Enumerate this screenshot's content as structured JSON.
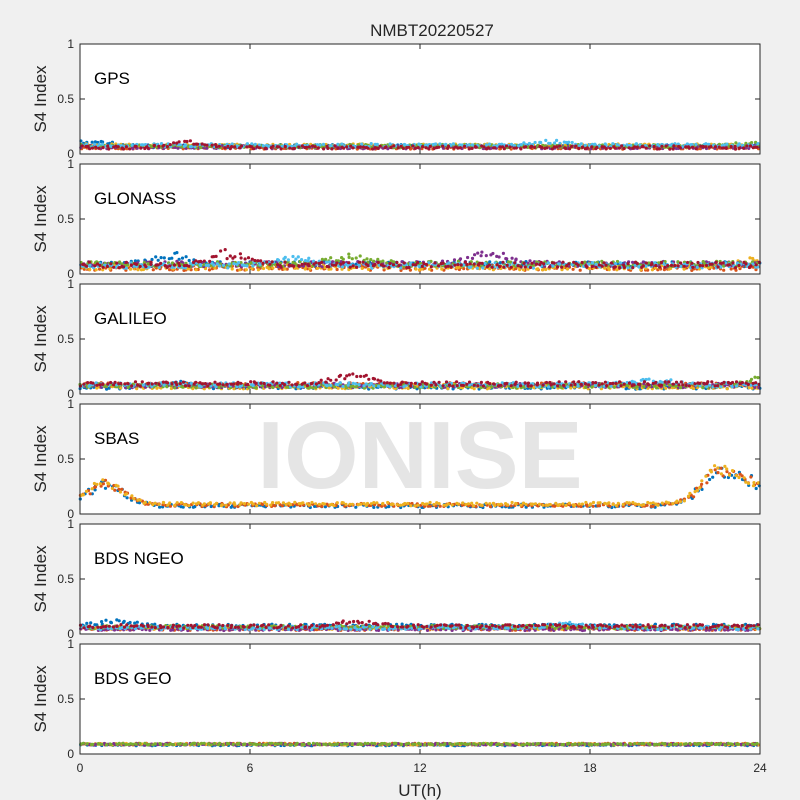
{
  "figure": {
    "title": "NMBT20220527",
    "watermark": "IONISE",
    "background_color": "#f0f0f0",
    "axes_background": "#ffffff",
    "series_colors": [
      "#0072bd",
      "#d95319",
      "#edb120",
      "#7e2f8e",
      "#77ac30",
      "#4dbeee",
      "#a2142f"
    ]
  },
  "chart_data": [
    {
      "type": "scatter",
      "panel_label": "GPS",
      "ylabel": "S4 Index",
      "xlabel": "",
      "xlim": [
        0,
        24
      ],
      "ylim": [
        0,
        1
      ],
      "yticks": [
        "0",
        "0.5",
        "1"
      ],
      "series_count": 7,
      "baseline": 0.07,
      "spread": 0.03,
      "bumps": [
        [
          0.5,
          0.12
        ],
        [
          3.8,
          0.12
        ],
        [
          16.5,
          0.11
        ],
        [
          23.5,
          0.1
        ]
      ]
    },
    {
      "type": "scatter",
      "panel_label": "GLONASS",
      "ylabel": "S4 Index",
      "xlabel": "",
      "xlim": [
        0,
        24
      ],
      "ylim": [
        0,
        1
      ],
      "yticks": [
        "0",
        "0.5",
        "1"
      ],
      "series_count": 7,
      "baseline": 0.08,
      "spread": 0.05,
      "bumps": [
        [
          3.2,
          0.18
        ],
        [
          5.2,
          0.2
        ],
        [
          7.5,
          0.17
        ],
        [
          9.5,
          0.15
        ],
        [
          14.5,
          0.2
        ],
        [
          24.0,
          0.16
        ]
      ]
    },
    {
      "type": "scatter",
      "panel_label": "GALILEO",
      "ylabel": "S4 Index",
      "xlabel": "",
      "xlim": [
        0,
        24
      ],
      "ylim": [
        0,
        1
      ],
      "yticks": [
        "0",
        "0.5",
        "1"
      ],
      "series_count": 7,
      "baseline": 0.08,
      "spread": 0.04,
      "bumps": [
        [
          3.3,
          0.13
        ],
        [
          9.6,
          0.17
        ],
        [
          20.3,
          0.13
        ],
        [
          24.0,
          0.17
        ]
      ]
    },
    {
      "type": "scatter",
      "panel_label": "SBAS",
      "ylabel": "S4 Index",
      "xlabel": "",
      "xlim": [
        0,
        24
      ],
      "ylim": [
        0,
        1
      ],
      "yticks": [
        "0",
        "0.5",
        "1"
      ],
      "series_count": 3,
      "baseline": 0.08,
      "spread": 0.03,
      "bumps": [
        [
          0.9,
          0.32
        ],
        [
          22.5,
          0.4
        ],
        [
          23.6,
          0.3
        ]
      ]
    },
    {
      "type": "scatter",
      "panel_label": "BDS NGEO",
      "ylabel": "S4 Index",
      "xlabel": "",
      "xlim": [
        0,
        24
      ],
      "ylim": [
        0,
        1
      ],
      "yticks": [
        "0",
        "0.5",
        "1"
      ],
      "series_count": 7,
      "baseline": 0.06,
      "spread": 0.03,
      "bumps": [
        [
          1.3,
          0.11
        ],
        [
          9.8,
          0.11
        ],
        [
          17.2,
          0.11
        ]
      ]
    },
    {
      "type": "scatter",
      "panel_label": "BDS GEO",
      "ylabel": "S4 Index",
      "xlabel": "UT(h)",
      "xlim": [
        0,
        24
      ],
      "ylim": [
        0,
        1
      ],
      "yticks": [
        "0",
        "0.5",
        "1"
      ],
      "xticks": [
        "0",
        "6",
        "12",
        "18",
        "24"
      ],
      "series_count": 5,
      "baseline": 0.085,
      "spread": 0.015,
      "bumps": []
    }
  ]
}
